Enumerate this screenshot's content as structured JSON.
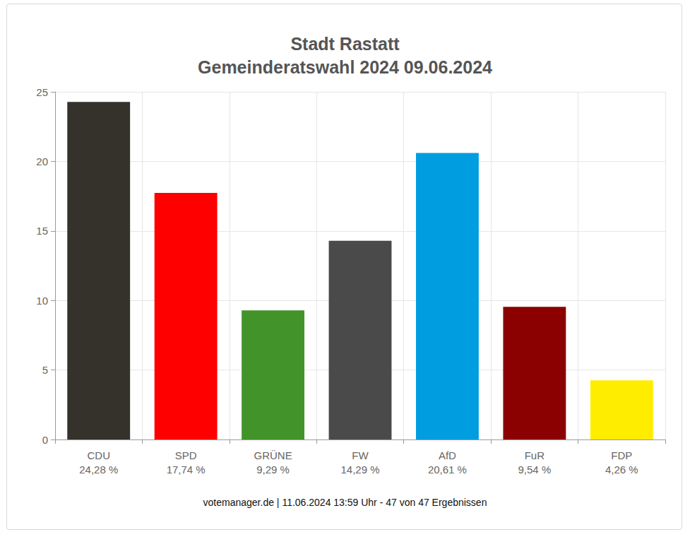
{
  "chart_data": {
    "type": "bar",
    "title": "Stadt Rastatt",
    "subtitle": "Gemeinderatswahl 2024 09.06.2024",
    "categories": [
      "CDU",
      "SPD",
      "GRÜNE",
      "FW",
      "AfD",
      "FuR",
      "FDP"
    ],
    "values": [
      24.28,
      17.74,
      9.29,
      14.29,
      20.61,
      9.54,
      4.26
    ],
    "value_labels": [
      "24,28 %",
      "17,74 %",
      "9,29 %",
      "14,29 %",
      "20,61 %",
      "9,54 %",
      "4,26 %"
    ],
    "colors": [
      "#34322b",
      "#ff0000",
      "#43932b",
      "#4a4a4a",
      "#009de0",
      "#8b0000",
      "#ffed00"
    ],
    "ylim": [
      0,
      25
    ],
    "yticks": [
      0,
      5,
      10,
      15,
      20,
      25
    ],
    "grid": true,
    "annotations": [
      "votemanager.de | 11.06.2024 13:59 Uhr - 47 von 47 Ergebnissen"
    ]
  }
}
